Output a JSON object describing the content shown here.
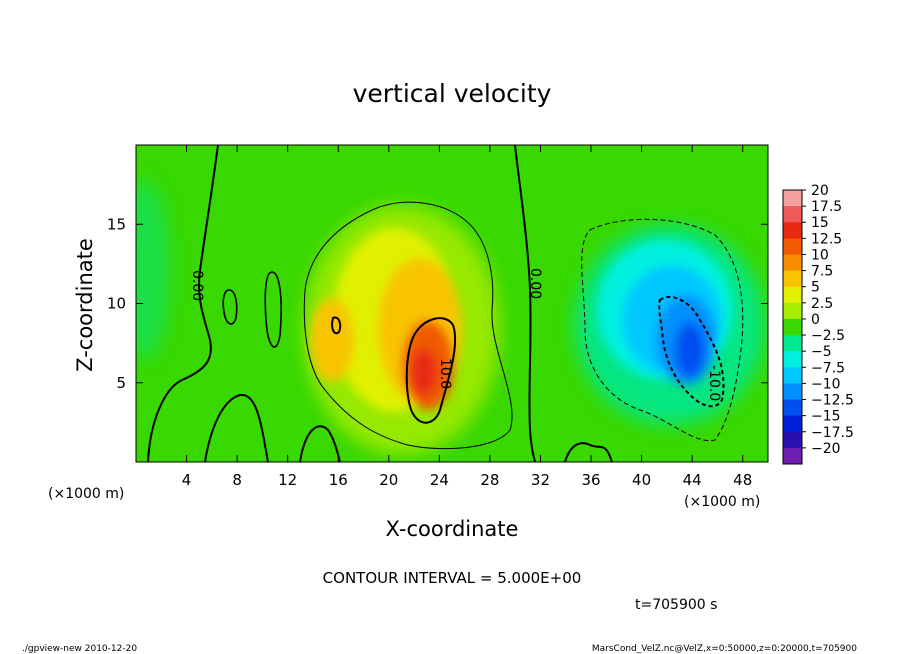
{
  "chart_data": {
    "type": "heatmap",
    "title": "vertical velocity",
    "xlabel": "X-coordinate",
    "ylabel": "Z-coordinate",
    "x_unit_label": "(×1000 m)",
    "x_unit_label_right": "(×1000 m)",
    "xlim": [
      0,
      50
    ],
    "ylim": [
      0,
      20
    ],
    "xticks": [
      4,
      8,
      12,
      16,
      20,
      24,
      28,
      32,
      36,
      40,
      44,
      48
    ],
    "yticks": [
      5,
      10,
      15
    ],
    "colorbar": {
      "levels": [
        "20",
        "17.5",
        "15",
        "12.5",
        "10",
        "7.5",
        "5",
        "2.5",
        "0",
        "−2.5",
        "−5",
        "−7.5",
        "−10",
        "−12.5",
        "−15",
        "−17.5",
        "−20"
      ],
      "colors": [
        "#f5a0a0",
        "#ee5a5a",
        "#e82a12",
        "#f05a00",
        "#f78c00",
        "#f8c400",
        "#e0f000",
        "#a8ec00",
        "#38d800",
        "#00e890",
        "#00f0e0",
        "#00c8ff",
        "#0090ff",
        "#0050f0",
        "#0020d8",
        "#2810b0",
        "#7020b0"
      ]
    },
    "contour_labels": [
      {
        "text": "0.00",
        "x": 4.8,
        "y": 11.5
      },
      {
        "text": "0.00",
        "x": 31.6,
        "y": 11.2
      },
      {
        "text": "10.0",
        "x": 23.8,
        "y": 5.5
      },
      {
        "text": "-10.0",
        "x": 45.3,
        "y": 5.0
      }
    ],
    "contour_interval": "CONTOUR INTERVAL = 5.000E+00",
    "time_label": "t=705900  s",
    "footer_left": "./gpview-new   2010-12-20",
    "footer_right": "MarsCond_VelZ.nc@VelZ,x=0:50000,z=0:20000,t=705900"
  }
}
